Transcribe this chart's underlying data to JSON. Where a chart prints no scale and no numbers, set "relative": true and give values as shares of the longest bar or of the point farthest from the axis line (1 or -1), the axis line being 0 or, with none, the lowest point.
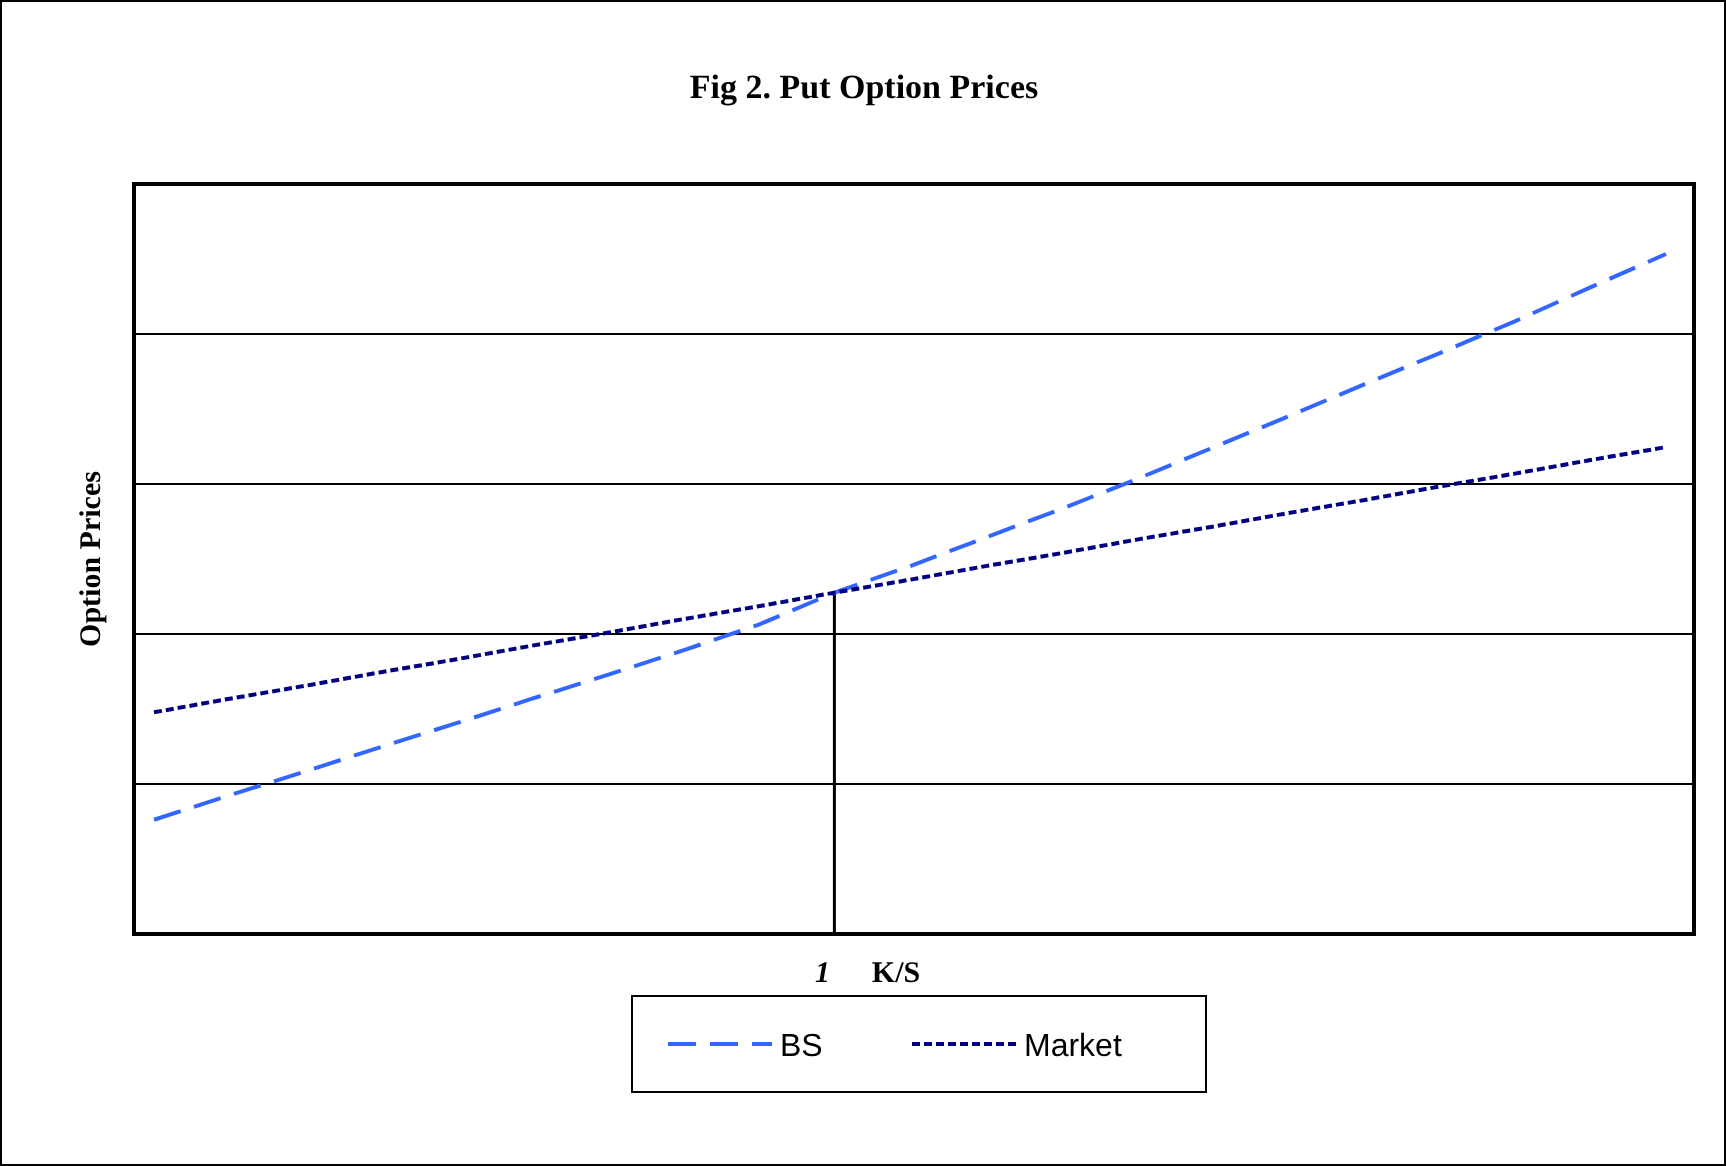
{
  "chart_data": {
    "type": "line",
    "title": "Fig 2. Put Option Prices",
    "xlabel": "K/S",
    "ylabel": "Option Prices",
    "relative": true,
    "grid": "y",
    "legend": "bottom",
    "categories": [
      null,
      null,
      null,
      null,
      null,
      null,
      null,
      null,
      null,
      null,
      null,
      null,
      null,
      null,
      null,
      null,
      null,
      null,
      null,
      null,
      null
    ],
    "annotations": [
      "1"
    ],
    "series": [
      {
        "name": "BS",
        "color": "#3366ff",
        "line_style": "dashed",
        "values": [
          0.168,
          0.204,
          0.239,
          0.275,
          0.31,
          0.346,
          0.381,
          0.417,
          0.455,
          0.502,
          0.541,
          0.583,
          0.625,
          0.669,
          0.715,
          0.761,
          0.808,
          0.854,
          0.901,
          0.951,
          1.0
        ]
      },
      {
        "name": "Market",
        "color": "#000080",
        "line_style": "dotted",
        "values": [
          0.326,
          0.346,
          0.365,
          0.385,
          0.404,
          0.424,
          0.443,
          0.463,
          0.482,
          0.502,
          0.521,
          0.541,
          0.56,
          0.58,
          0.599,
          0.619,
          0.638,
          0.658,
          0.677,
          0.697,
          0.716
        ]
      }
    ]
  }
}
